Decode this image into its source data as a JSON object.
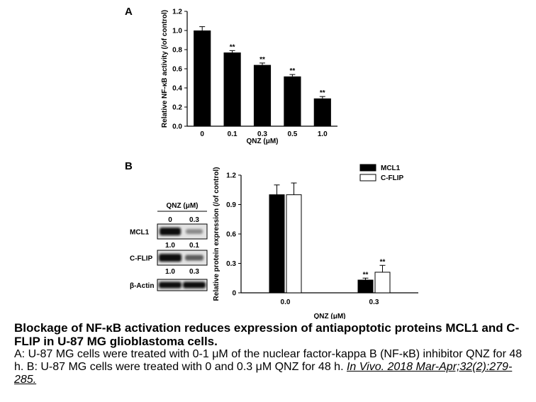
{
  "chart_data": [
    {
      "type": "bar",
      "panel_label": "A",
      "categories": [
        "0",
        "0.1",
        "0.3",
        "0.5",
        "1.0"
      ],
      "values": [
        1.0,
        0.77,
        0.64,
        0.52,
        0.29
      ],
      "errors": [
        0.04,
        0.02,
        0.02,
        0.02,
        0.02
      ],
      "significance": [
        "",
        "**",
        "**",
        "**",
        "**"
      ],
      "xlabel": "QNZ (μM)",
      "ylabel": "Relative NF-κB activity (/of control)",
      "ylim": [
        0,
        1.2
      ],
      "yticks": [
        "0.0",
        "0.2",
        "0.4",
        "0.6",
        "0.8",
        "1.0",
        "1.2"
      ],
      "color": "#000000"
    },
    {
      "type": "bar",
      "panel_label": "B",
      "categories": [
        "0.0",
        "0.3"
      ],
      "series": [
        {
          "name": "MCL1",
          "values": [
            1.0,
            0.13
          ],
          "errors": [
            0.1,
            0.02
          ],
          "significance": [
            "",
            "**"
          ],
          "color": "#000000"
        },
        {
          "name": "C-FLIP",
          "values": [
            1.0,
            0.21
          ],
          "errors": [
            0.12,
            0.07
          ],
          "significance": [
            "",
            "**"
          ],
          "color": "#ffffff"
        }
      ],
      "xlabel": "QNZ (μM)",
      "ylabel": "Relative protein expression (/of control)",
      "ylim": [
        0,
        1.2
      ],
      "yticks": [
        "0",
        "0.3",
        "0.6",
        "0.9",
        "1.2"
      ],
      "legend_position": "top-right"
    }
  ],
  "blot": {
    "header": "QNZ (μM)",
    "lanes": [
      "0",
      "0.3"
    ],
    "rows": [
      {
        "label": "MCL1",
        "quant": [
          "1.0",
          "0.1"
        ]
      },
      {
        "label": "C-FLIP",
        "quant": [
          "1.0",
          "0.3"
        ]
      },
      {
        "label": "β-Actin",
        "quant": []
      }
    ]
  },
  "caption": {
    "title": "Blockage of NF-κB activation reduces expression of antiapoptotic proteins MCL1 and C-FLIP in U-87 MG glioblastoma cells.",
    "body": "A: U-87 MG cells were treated with 0-1 μM of the nuclear factor-kappa B (NF-κB) inhibitor QNZ for 48 h. B: U-87 MG cells were treated with 0 and 0.3 μM QNZ for 48 h.",
    "reference": "In Vivo. 2018 Mar-Apr;32(2):279-285."
  }
}
